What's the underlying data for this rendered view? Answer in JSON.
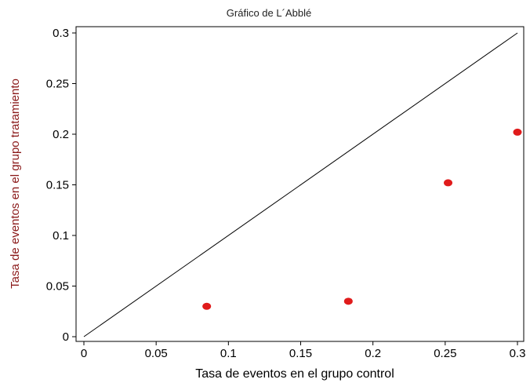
{
  "chart_data": {
    "type": "scatter",
    "title": "Gráfico de L´Abblé",
    "xlabel": "Tasa de eventos en el grupo control",
    "ylabel": "Tasa de eventos en el grupo tratamiento",
    "xlim": [
      0,
      0.3
    ],
    "ylim": [
      0,
      0.3
    ],
    "xticks": [
      "0",
      "0.05",
      "0.1",
      "0.15",
      "0.2",
      "0.25",
      "0.3"
    ],
    "yticks": [
      "0",
      "0.05",
      "0.1",
      "0.15",
      "0.2",
      "0.25",
      "0.3"
    ],
    "grid": false,
    "points": [
      {
        "x": 0.085,
        "y": 0.03
      },
      {
        "x": 0.183,
        "y": 0.035
      },
      {
        "x": 0.252,
        "y": 0.152
      },
      {
        "x": 0.3,
        "y": 0.202
      }
    ],
    "reference_line": {
      "from": [
        0,
        0
      ],
      "to": [
        0.3,
        0.3
      ]
    },
    "colors": {
      "points": "#e01b1b",
      "line": "#000000",
      "ylabel": "#8b1a1a"
    }
  }
}
